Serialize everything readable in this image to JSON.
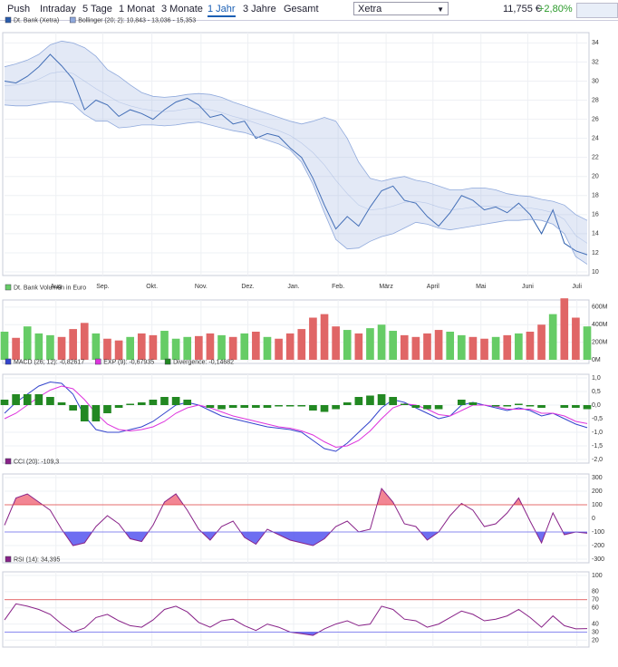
{
  "toolbar": {
    "tabs": [
      "Push",
      "Intraday",
      "5 Tage",
      "1 Monat",
      "3 Monate",
      "1 Jahr",
      "3 Jahre",
      "Gesamt"
    ],
    "exchange": "Xetra",
    "price": "11,755 €",
    "change": "+2,80%"
  },
  "chart_data": [
    {
      "type": "line",
      "xlim": [
        0,
        51
      ],
      "xticks": [
        {
          "value": 4.5,
          "label": "Aug"
        },
        {
          "value": 8.6,
          "label": "Sep."
        },
        {
          "value": 12.9,
          "label": "Okt."
        },
        {
          "value": 17.2,
          "label": "Nov."
        },
        {
          "value": 21.3,
          "label": "Dez."
        },
        {
          "value": 25.3,
          "label": "Jan."
        },
        {
          "value": 29.2,
          "label": "Feb."
        },
        {
          "value": 33.4,
          "label": "März"
        },
        {
          "value": 37.5,
          "label": "April"
        },
        {
          "value": 41.7,
          "label": "Mai"
        },
        {
          "value": 45.8,
          "label": "Juni"
        },
        {
          "value": 50.1,
          "label": "Juli"
        }
      ],
      "ylim": [
        10,
        34.7
      ],
      "yticks": [
        10,
        12,
        14,
        16,
        18,
        20,
        22,
        24,
        26,
        28,
        30,
        32,
        34
      ],
      "grid": true,
      "series": [
        {
          "name": "Dt. Bank (Xetra)",
          "color": "#2a5cab",
          "values": [
            30.0,
            29.8,
            30.5,
            31.5,
            32.8,
            31.6,
            30.2,
            27.0,
            28.0,
            27.5,
            26.3,
            27.0,
            26.6,
            26.0,
            27.0,
            27.8,
            28.2,
            27.5,
            26.2,
            26.5,
            25.5,
            25.8,
            24.0,
            24.5,
            24.2,
            23.0,
            22.0,
            19.8,
            17.0,
            14.5,
            15.8,
            14.8,
            16.8,
            18.5,
            19.0,
            17.5,
            17.2,
            15.8,
            14.8,
            16.2,
            18.0,
            17.5,
            16.5,
            16.8,
            16.2,
            17.2,
            16.0,
            14.0,
            16.5,
            13.0,
            12.2,
            11.8
          ]
        },
        {
          "name": "Bollinger (20; 2): 10,843 - 13,036 - 15,353",
          "color": "#8fa9dc",
          "values": [
            29.5,
            29.6,
            29.8,
            30.2,
            30.8,
            31.0,
            30.8,
            30.0,
            29.2,
            28.5,
            27.8,
            27.4,
            27.1,
            26.9,
            26.8,
            26.9,
            27.1,
            27.2,
            27.0,
            26.7,
            26.3,
            26.0,
            25.6,
            25.2,
            24.8,
            24.3,
            23.5,
            22.5,
            21.2,
            19.6,
            18.2,
            17.0,
            16.5,
            16.6,
            16.9,
            17.3,
            17.4,
            17.2,
            16.8,
            16.5,
            16.6,
            16.8,
            16.9,
            16.9,
            16.8,
            16.7,
            16.7,
            16.5,
            16.2,
            15.5,
            13.8,
            13.0
          ],
          "upper": [
            31.5,
            31.8,
            32.2,
            32.8,
            33.8,
            34.2,
            34.0,
            33.5,
            32.6,
            31.2,
            30.5,
            29.6,
            28.8,
            28.4,
            28.3,
            28.4,
            28.6,
            28.7,
            28.6,
            28.3,
            27.8,
            27.4,
            27.0,
            26.6,
            26.2,
            25.8,
            25.5,
            25.8,
            26.2,
            25.8,
            24.0,
            21.5,
            19.8,
            19.5,
            19.8,
            20.0,
            19.6,
            19.4,
            19.0,
            18.6,
            18.6,
            18.8,
            18.8,
            18.6,
            18.2,
            18.0,
            17.9,
            17.6,
            17.4,
            17.0,
            16.0,
            15.4
          ],
          "lower": [
            27.5,
            27.4,
            27.4,
            27.6,
            27.8,
            27.8,
            27.6,
            26.5,
            25.8,
            25.8,
            25.1,
            25.2,
            25.4,
            25.4,
            25.3,
            25.4,
            25.6,
            25.7,
            25.4,
            25.1,
            24.8,
            24.6,
            24.2,
            23.8,
            23.4,
            22.8,
            21.5,
            19.2,
            16.2,
            13.4,
            12.4,
            12.5,
            13.2,
            13.7,
            14.0,
            14.6,
            15.2,
            15.0,
            14.6,
            14.4,
            14.6,
            14.8,
            15.0,
            15.2,
            15.4,
            15.4,
            15.5,
            15.4,
            15.0,
            14.0,
            11.6,
            10.8
          ]
        }
      ]
    },
    {
      "type": "bar",
      "ylim": [
        0,
        640
      ],
      "yticks": [
        {
          "value": 0,
          "label": "0M"
        },
        {
          "value": 200,
          "label": "200M"
        },
        {
          "value": 400,
          "label": "400M"
        },
        {
          "value": 600,
          "label": "600M"
        }
      ],
      "grid": true,
      "series": [
        {
          "name": "Dt. Bank Volumen in Euro",
          "color": "#66cc66",
          "values": [
            320,
            250,
            380,
            300,
            280,
            260,
            350,
            420,
            300,
            240,
            220,
            260,
            300,
            280,
            330,
            240,
            260,
            270,
            300,
            280,
            260,
            300,
            320,
            260,
            240,
            300,
            350,
            480,
            520,
            380,
            340,
            300,
            360,
            400,
            330,
            280,
            260,
            300,
            340,
            320,
            280,
            260,
            240,
            260,
            280,
            300,
            320,
            400,
            520,
            700,
            480,
            380
          ],
          "colors": [
            "#66cc66",
            "#e06666",
            "#66cc66",
            "#66cc66",
            "#66cc66",
            "#e06666",
            "#e06666",
            "#e06666",
            "#66cc66",
            "#e06666",
            "#e06666",
            "#66cc66",
            "#e06666",
            "#e06666",
            "#66cc66",
            "#66cc66",
            "#66cc66",
            "#e06666",
            "#e06666",
            "#66cc66",
            "#e06666",
            "#66cc66",
            "#e06666",
            "#66cc66",
            "#e06666",
            "#e06666",
            "#e06666",
            "#e06666",
            "#e06666",
            "#e06666",
            "#66cc66",
            "#e06666",
            "#66cc66",
            "#66cc66",
            "#66cc66",
            "#e06666",
            "#e06666",
            "#e06666",
            "#e06666",
            "#66cc66",
            "#66cc66",
            "#e06666",
            "#e06666",
            "#66cc66",
            "#e06666",
            "#66cc66",
            "#e06666",
            "#e06666",
            "#66cc66",
            "#e06666",
            "#e06666",
            "#66cc66"
          ]
        }
      ]
    },
    {
      "type": "line",
      "ylim": [
        -2,
        1
      ],
      "yticks": [
        {
          "value": 1,
          "label": "1,0"
        },
        {
          "value": 0.5,
          "label": "0,5"
        },
        {
          "value": 0,
          "label": "0,0"
        },
        {
          "value": -0.5,
          "label": "-0,5"
        },
        {
          "value": -1,
          "label": "-1,0"
        },
        {
          "value": -1.5,
          "label": "-1,5"
        },
        {
          "value": -2,
          "label": "-2,0"
        }
      ],
      "grid": true,
      "series": [
        {
          "name": "MACD (26; 12): -0,82617",
          "color": "#3344cc",
          "values": [
            -0.3,
            0.1,
            0.4,
            0.7,
            0.85,
            0.8,
            0.4,
            -0.4,
            -0.9,
            -1.0,
            -1.0,
            -0.9,
            -0.8,
            -0.6,
            -0.3,
            0.0,
            0.1,
            0.0,
            -0.2,
            -0.4,
            -0.5,
            -0.6,
            -0.7,
            -0.8,
            -0.85,
            -0.9,
            -1.0,
            -1.3,
            -1.6,
            -1.7,
            -1.4,
            -1.0,
            -0.6,
            -0.1,
            0.2,
            0.1,
            -0.1,
            -0.3,
            -0.5,
            -0.4,
            0.0,
            0.1,
            0.0,
            -0.1,
            -0.2,
            -0.1,
            -0.2,
            -0.4,
            -0.3,
            -0.5,
            -0.7,
            -0.83
          ]
        },
        {
          "name": "EXP (9): -0,67935",
          "color": "#dd33dd",
          "values": [
            -0.5,
            -0.3,
            0.0,
            0.3,
            0.55,
            0.7,
            0.6,
            0.2,
            -0.3,
            -0.7,
            -0.9,
            -0.95,
            -0.9,
            -0.8,
            -0.6,
            -0.3,
            -0.1,
            0.0,
            -0.1,
            -0.25,
            -0.4,
            -0.5,
            -0.6,
            -0.7,
            -0.8,
            -0.85,
            -0.95,
            -1.1,
            -1.35,
            -1.55,
            -1.5,
            -1.3,
            -0.95,
            -0.5,
            -0.1,
            0.05,
            0.0,
            -0.15,
            -0.35,
            -0.4,
            -0.2,
            0.0,
            0.0,
            -0.05,
            -0.15,
            -0.15,
            -0.15,
            -0.3,
            -0.3,
            -0.4,
            -0.6,
            -0.68
          ]
        },
        {
          "name": "Divergence: -0,14682",
          "color": "#228822",
          "type": "bar",
          "values": [
            0.2,
            0.4,
            0.4,
            0.4,
            0.3,
            0.1,
            -0.2,
            -0.6,
            -0.6,
            -0.3,
            -0.1,
            0.05,
            0.1,
            0.2,
            0.3,
            0.3,
            0.2,
            0.0,
            -0.1,
            -0.15,
            -0.1,
            -0.1,
            -0.1,
            -0.1,
            -0.05,
            -0.05,
            -0.05,
            -0.2,
            -0.25,
            -0.15,
            0.1,
            0.3,
            0.35,
            0.4,
            0.3,
            0.05,
            -0.1,
            -0.15,
            -0.15,
            0.0,
            0.2,
            0.1,
            0.0,
            -0.05,
            -0.05,
            0.05,
            -0.05,
            -0.1,
            0.0,
            -0.1,
            -0.1,
            -0.15
          ]
        }
      ]
    },
    {
      "type": "line",
      "ylim": [
        -300,
        300
      ],
      "yticks": [
        300,
        200,
        100,
        0,
        -100,
        -200,
        -300
      ],
      "grid": true,
      "levels": [
        {
          "value": 100,
          "color": "#e04040",
          "fill": "#f07080"
        },
        {
          "value": -100,
          "color": "#6666ee",
          "fill": "#5555ee"
        }
      ],
      "series": [
        {
          "name": "CCI (20): -109,3",
          "color": "#882288",
          "values": [
            -50,
            150,
            180,
            120,
            60,
            -80,
            -200,
            -180,
            -60,
            20,
            -40,
            -150,
            -170,
            -50,
            120,
            180,
            60,
            -80,
            -160,
            -60,
            -20,
            -140,
            -190,
            -80,
            -120,
            -160,
            -180,
            -200,
            -150,
            -60,
            -20,
            -100,
            -80,
            220,
            120,
            -40,
            -60,
            -160,
            -100,
            20,
            110,
            60,
            -60,
            -40,
            40,
            150,
            -20,
            -180,
            40,
            -120,
            -100,
            -109
          ]
        }
      ]
    },
    {
      "type": "line",
      "ylim": [
        16,
        100
      ],
      "yticks": [
        100,
        80,
        70,
        60,
        40,
        30,
        20
      ],
      "grid": true,
      "levels": [
        {
          "value": 70,
          "color": "#e04040",
          "fill": "#f07080"
        },
        {
          "value": 30,
          "color": "#6666ee",
          "fill": "#5555ee"
        }
      ],
      "series": [
        {
          "name": "RSI (14): 34,395",
          "color": "#882288",
          "values": [
            45,
            65,
            62,
            58,
            52,
            40,
            30,
            35,
            48,
            52,
            44,
            38,
            36,
            45,
            58,
            62,
            55,
            42,
            36,
            44,
            46,
            38,
            32,
            40,
            36,
            30,
            28,
            26,
            34,
            40,
            44,
            38,
            40,
            62,
            58,
            46,
            44,
            36,
            40,
            48,
            56,
            52,
            44,
            46,
            50,
            58,
            48,
            36,
            50,
            38,
            34,
            34.4
          ]
        }
      ]
    }
  ]
}
